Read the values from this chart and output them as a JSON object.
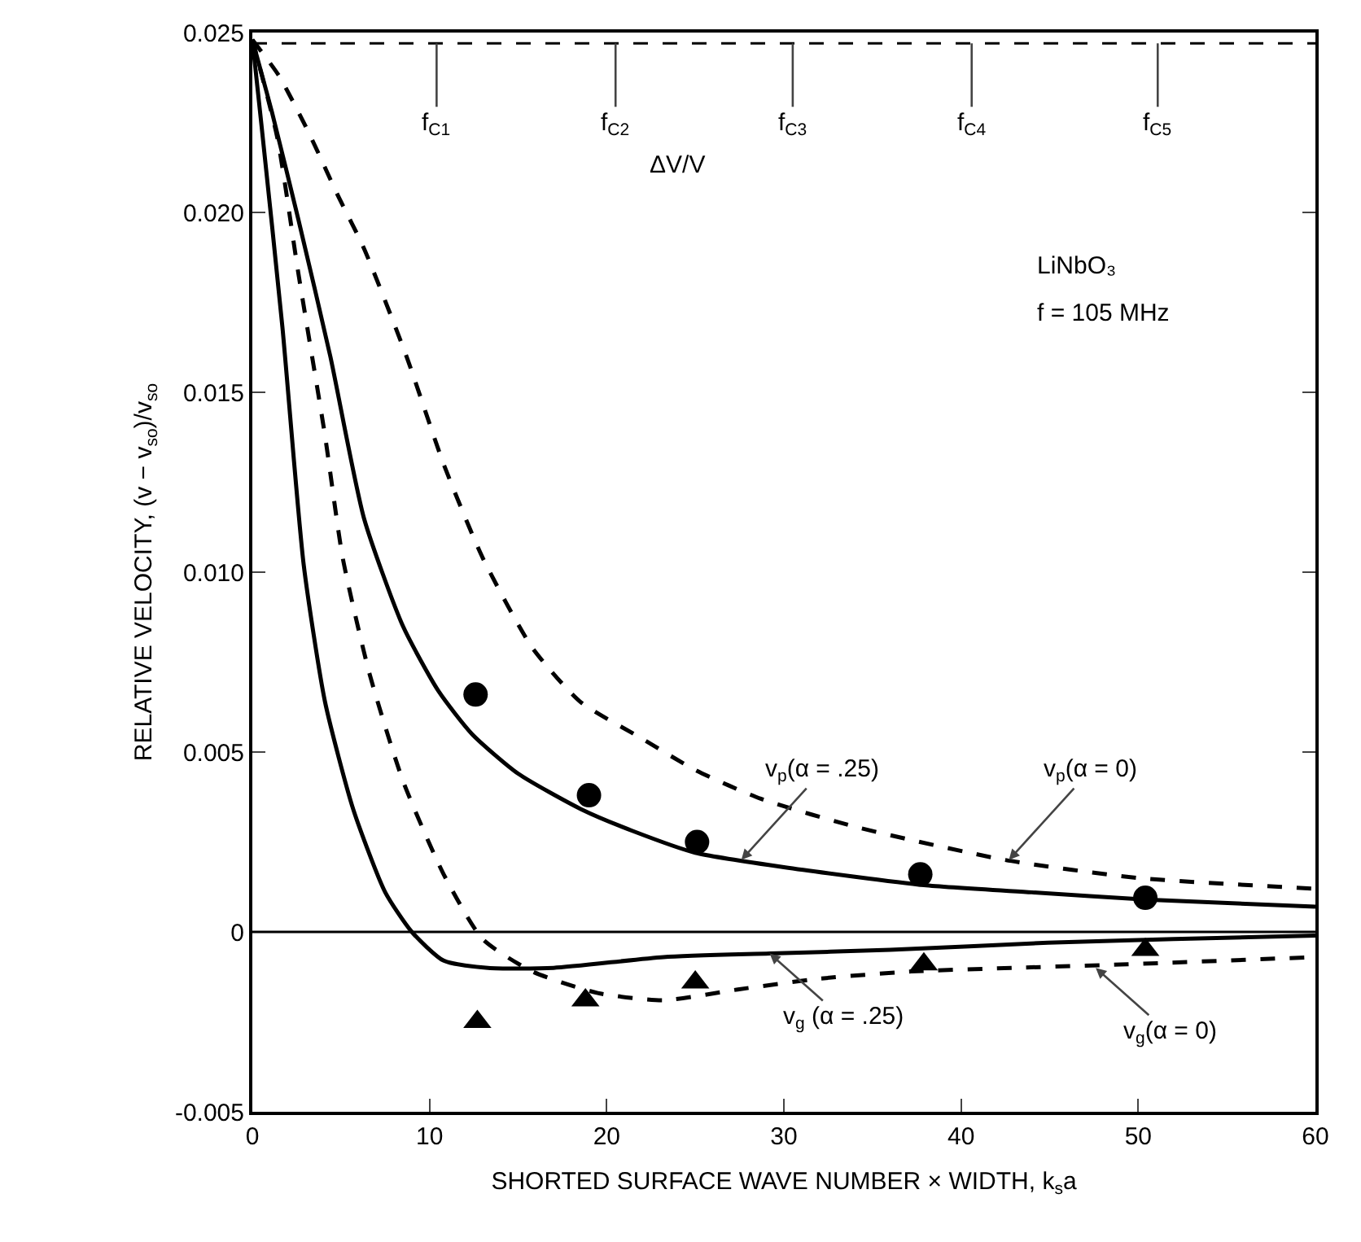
{
  "chart_data": {
    "type": "line",
    "xlabel": "SHORTED SURFACE WAVE NUMBER × WIDTH, k$_{s}$a",
    "ylabel": "RELATIVE VELOCITY, (v − v$_{so}$)/v$_{so}$",
    "xlim": [
      0,
      60
    ],
    "xticks": [
      0,
      10,
      20,
      30,
      40,
      50,
      60
    ],
    "ylim": [
      -0.005,
      0.025
    ],
    "yticks": [
      -0.005,
      0,
      {
        "value": 0.005,
        "label": "0.005"
      },
      {
        "value": 0.01,
        "label": "0.010"
      },
      {
        "value": 0.015,
        "label": "0.015"
      },
      {
        "value": 0.02,
        "label": "0.020"
      },
      {
        "value": 0.025,
        "label": "0.025"
      }
    ],
    "grid": false,
    "series": [
      {
        "color": "#000000",
        "line_style": "dashed",
        "x": [
          0,
          1.5,
          3.2,
          4.8,
          6.3,
          8.7,
          10.8,
          13,
          15.8,
          18.5,
          21.9,
          25,
          28.7,
          34.2,
          42.5,
          50,
          60
        ],
        "values": [
          0.0248,
          0.0238,
          0.0222,
          0.0205,
          0.019,
          0.016,
          0.013,
          0.0104,
          0.0079,
          0.0064,
          0.0054,
          0.0045,
          0.0037,
          0.0029,
          0.002,
          0.0015,
          0.0012
        ]
      },
      {
        "color": "#000000",
        "line_style": "solid",
        "x": [
          0,
          1.1,
          2.6,
          4.4,
          6.3,
          8.5,
          10.5,
          12.4,
          15,
          18.6,
          21.5,
          25,
          30,
          37.9,
          44,
          50.4,
          60
        ],
        "values": [
          0.0248,
          0.0228,
          0.0198,
          0.016,
          0.0115,
          0.0085,
          0.0067,
          0.0055,
          0.0044,
          0.0034,
          0.0028,
          0.0022,
          0.0018,
          0.0013,
          0.0011,
          0.0009,
          0.0007
        ]
      },
      {
        "color": "#000000",
        "line_style": "dashed",
        "x": [
          0,
          1.4,
          2.6,
          4.1,
          5.1,
          6.6,
          8.5,
          10.8,
          13,
          15.8,
          19.5,
          23.2,
          27.4,
          32,
          37.2,
          43,
          49.4,
          60
        ],
        "values": [
          0.0248,
          0.0221,
          0.0183,
          0.0138,
          0.0104,
          0.0072,
          0.0042,
          0.0016,
          -0.0002,
          -0.0011,
          -0.0017,
          -0.0019,
          -0.0016,
          -0.0013,
          -0.0011,
          -0.001,
          -0.0009,
          -0.0007
        ]
      },
      {
        "color": "#000000",
        "line_style": "solid",
        "x": [
          0,
          0.5,
          1.7,
          2.9,
          4.1,
          5.7,
          7.5,
          9,
          10.8,
          13.3,
          17,
          23.2,
          29.2,
          36,
          44.9,
          52,
          60
        ],
        "values": [
          0.0248,
          0.0225,
          0.0168,
          0.0102,
          0.0064,
          0.0034,
          0.0011,
          0,
          -0.0008,
          -0.001,
          -0.001,
          -0.0007,
          -0.0006,
          -0.0005,
          -0.0003,
          -0.0002,
          -0.0001
        ]
      },
      {
        "type": "scatter",
        "color": "#000000",
        "marker": "circle",
        "x": [
          12.6,
          19,
          25.1,
          37.7,
          50.4
        ],
        "values": [
          0.0066,
          0.0038,
          0.0025,
          0.0016,
          0.00095
        ]
      },
      {
        "type": "scatter",
        "color": "#000000",
        "marker": "triangle",
        "x": [
          12.7,
          18.8,
          25,
          37.9,
          50.4
        ],
        "values": [
          -0.0025,
          -0.0019,
          -0.0014,
          -0.0009,
          -0.0005
        ]
      }
    ],
    "ref_lines": [
      {
        "axis": "y",
        "value": 0.0247,
        "label": "ΔV/V",
        "line_style": "dashed",
        "color": "#000000"
      },
      {
        "axis": "y",
        "value": 0,
        "label": null,
        "line_style": "solid",
        "color": "#000000"
      }
    ],
    "annotations": [
      {
        "text": "f$_{C1}$",
        "x": 10.4,
        "y": 0.0247
      },
      {
        "text": "f$_{C2}$",
        "x": 20.5,
        "y": 0.0247
      },
      {
        "text": "f$_{C3}$",
        "x": 30.5,
        "y": 0.0247
      },
      {
        "text": "f$_{C4}$",
        "x": 40.6,
        "y": 0.0247
      },
      {
        "text": "f$_{C5}$",
        "x": 51.1,
        "y": 0.0247
      },
      {
        "text": "v$_{p}$(α = .25)",
        "x": 27.6,
        "y": 0.002
      },
      {
        "text": "v$_{p}$(α = 0)",
        "x": 42.7,
        "y": 0.002
      },
      {
        "text": "v$_{g}$ (α = .25)",
        "x": 29.2,
        "y": -0.0006
      },
      {
        "text": "v$_{g}$(α = 0)",
        "x": 47.6,
        "y": -0.001
      },
      "LiNbO₃",
      "f = 105 MHz"
    ]
  }
}
